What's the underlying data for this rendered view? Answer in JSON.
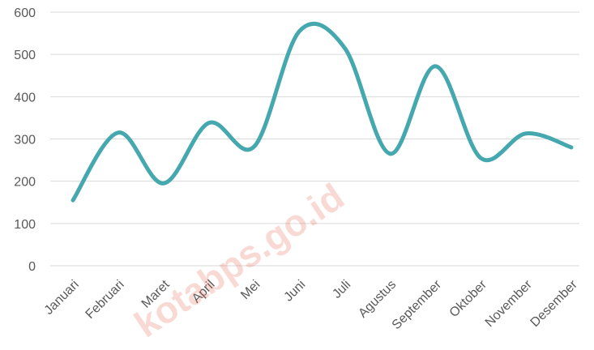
{
  "chart_data": {
    "type": "line",
    "smooth": true,
    "categories": [
      "Januari",
      "Februari",
      "Maret",
      "April",
      "Mei",
      "Juni",
      "Juli",
      "Agustus",
      "September",
      "Oktober",
      "November",
      "Desember"
    ],
    "series": [
      {
        "values": [
          155,
          315,
          195,
          338,
          282,
          555,
          515,
          265,
          472,
          255,
          313,
          280
        ],
        "color": "#45a8ae"
      }
    ],
    "ylim": [
      0,
      600
    ],
    "yticks": [
      0,
      100,
      200,
      300,
      400,
      500,
      600
    ],
    "grid": "horizontal",
    "legend": "none"
  },
  "watermark": {
    "text": "kotabps.go.id",
    "color": "#e2583e"
  }
}
